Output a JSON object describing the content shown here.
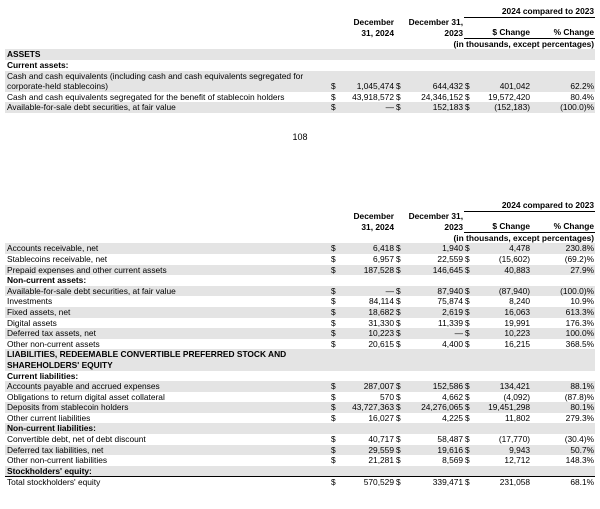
{
  "tables": [
    {
      "comparison_header": "2024 compared to 2023",
      "columns": [
        "December 31, 2024",
        "December 31, 2023",
        "$ Change",
        "% Change"
      ],
      "units_note": "(in thousands, except percentages)",
      "currency": "$",
      "rows": [
        {
          "heading": "ASSETS"
        },
        {
          "heading": "Current assets:"
        },
        {
          "label": "Cash and cash equivalents (including cash and cash equivalents segregated for corporate-held stablecoins)",
          "values": [
            "1,045,474",
            "644,432",
            "401,042",
            "62.2%"
          ]
        },
        {
          "label": "Cash and cash equivalents segregated for the benefit of stablecoin holders",
          "values": [
            "43,918,572",
            "24,346,152",
            "19,572,420",
            "80.4%"
          ]
        },
        {
          "label": "Available-for-sale debt securities, at fair value",
          "values": [
            "—",
            "152,183",
            "(152,183)",
            "(100.0)%"
          ]
        }
      ]
    },
    {
      "comparison_header": "2024 compared to 2023",
      "columns": [
        "December 31, 2024",
        "December 31, 2023",
        "$ Change",
        "% Change"
      ],
      "units_note": "(in thousands, except percentages)",
      "currency": "$",
      "rows": [
        {
          "label": "Accounts receivable, net",
          "values": [
            "6,418",
            "1,940",
            "4,478",
            "230.8%"
          ]
        },
        {
          "label": "Stablecoins receivable, net",
          "values": [
            "6,957",
            "22,559",
            "(15,602)",
            "(69.2)%"
          ]
        },
        {
          "label": "Prepaid expenses and other current assets",
          "values": [
            "187,528",
            "146,645",
            "40,883",
            "27.9%"
          ]
        },
        {
          "heading": "Non-current assets:"
        },
        {
          "label": "Available-for-sale debt securities, at fair value",
          "values": [
            "—",
            "87,940",
            "(87,940)",
            "(100.0)%"
          ]
        },
        {
          "label": "Investments",
          "values": [
            "84,114",
            "75,874",
            "8,240",
            "10.9%"
          ]
        },
        {
          "label": "Fixed assets, net",
          "values": [
            "18,682",
            "2,619",
            "16,063",
            "613.3%"
          ]
        },
        {
          "label": "Digital assets",
          "values": [
            "31,330",
            "11,339",
            "19,991",
            "176.3%"
          ]
        },
        {
          "label": "Deferred tax assets, net",
          "values": [
            "10,223",
            "—",
            "10,223",
            "100.0%"
          ]
        },
        {
          "label": "Other non-current assets",
          "values": [
            "20,615",
            "4,400",
            "16,215",
            "368.5%"
          ]
        },
        {
          "heading": "LIABILITIES, REDEEMABLE CONVERTIBLE PREFERRED STOCK AND SHAREHOLDERS' EQUITY"
        },
        {
          "heading": "Current liabilities:"
        },
        {
          "label": "Accounts payable and accrued expenses",
          "values": [
            "287,007",
            "152,586",
            "134,421",
            "88.1%"
          ]
        },
        {
          "label": "Obligations to return digital asset collateral",
          "values": [
            "570",
            "4,662",
            "(4,092)",
            "(87.8)%"
          ]
        },
        {
          "label": "Deposits from stablecoin holders",
          "values": [
            "43,727,363",
            "24,276,065",
            "19,451,298",
            "80.1%"
          ]
        },
        {
          "label": "Other current liabilities",
          "values": [
            "16,027",
            "4,225",
            "11,802",
            "279.3%"
          ]
        },
        {
          "heading": "Non-current liabilities:"
        },
        {
          "label": "Convertible debt, net of debt discount",
          "values": [
            "40,717",
            "58,487",
            "(17,770)",
            "(30.4)%"
          ]
        },
        {
          "label": "Deferred tax liabilities, net",
          "values": [
            "29,559",
            "19,616",
            "9,943",
            "50.7%"
          ]
        },
        {
          "label": "Other non-current liabilities",
          "values": [
            "21,281",
            "8,569",
            "12,712",
            "148.3%"
          ]
        },
        {
          "heading": "Stockholders' equity:"
        },
        {
          "label": "Total stockholders' equity",
          "values": [
            "570,529",
            "339,471",
            "231,058",
            "68.1%"
          ]
        }
      ]
    }
  ],
  "page_number": "108"
}
